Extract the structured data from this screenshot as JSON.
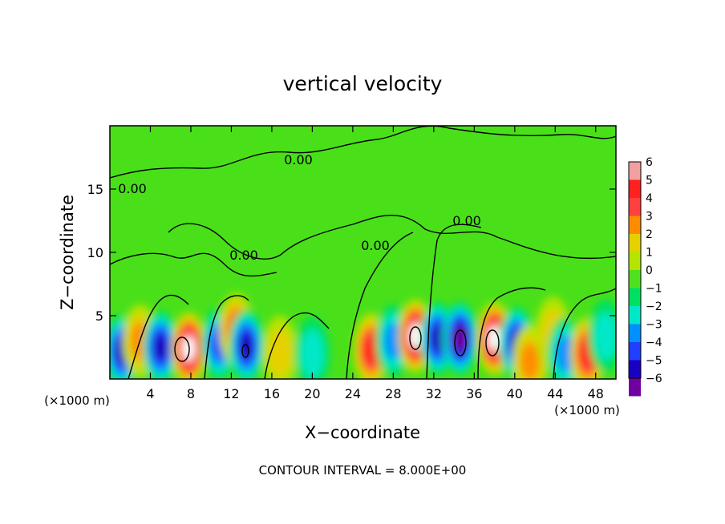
{
  "chart_data": {
    "type": "heatmap",
    "title": "vertical velocity",
    "xlabel": "X−coordinate",
    "ylabel": "Z−coordinate",
    "x_unit_left": "(×1000 m)",
    "x_unit_right": "(×1000 m)",
    "xlim": [
      0,
      50
    ],
    "ylim": [
      0,
      20
    ],
    "x_ticks": [
      4,
      8,
      12,
      16,
      20,
      24,
      28,
      32,
      36,
      40,
      44,
      48
    ],
    "y_ticks": [
      5,
      10,
      15
    ],
    "x_tick_labels": [
      "4",
      "8",
      "12",
      "16",
      "20",
      "24",
      "28",
      "32",
      "36",
      "40",
      "44",
      "48"
    ],
    "y_tick_labels": [
      "5",
      "10",
      "15"
    ],
    "colorbar": {
      "levels": [
        6,
        5,
        4,
        3,
        2,
        1,
        0,
        -1,
        -2,
        -3,
        -4,
        -5,
        -6
      ],
      "labels": [
        "6",
        "5",
        "4",
        "3",
        "2",
        "1",
        "0",
        "−1",
        "−2",
        "−3",
        "−4",
        "−5",
        "−6"
      ],
      "colors": [
        "#f0a0a0",
        "#ff2020",
        "#ff4040",
        "#ff8c00",
        "#e6d000",
        "#b4e400",
        "#50e020",
        "#00e060",
        "#00e8c8",
        "#0090ff",
        "#2040ff",
        "#1a00c0",
        "#7000a0"
      ],
      "contour_labels": [
        "0.00",
        "0.00",
        "0.00",
        "0.00",
        "0.00"
      ]
    },
    "cells": [
      {
        "x": 1.2,
        "z": 2.2,
        "w": -4.5
      },
      {
        "x": 3.0,
        "z": 3.0,
        "w": 3.0
      },
      {
        "x": 5.0,
        "z": 2.5,
        "w": -5.0
      },
      {
        "x": 7.8,
        "z": 2.4,
        "w": 6.5
      },
      {
        "x": 10.8,
        "z": 2.8,
        "w": -3.8
      },
      {
        "x": 12.5,
        "z": 3.9,
        "w": 4.0
      },
      {
        "x": 13.5,
        "z": 2.6,
        "w": -4.8
      },
      {
        "x": 16.8,
        "z": 2.1,
        "w": 2.4
      },
      {
        "x": 20.0,
        "z": 2.0,
        "w": -2.3
      },
      {
        "x": 25.8,
        "z": 2.3,
        "w": 4.8
      },
      {
        "x": 28.0,
        "z": 3.0,
        "w": -3.0
      },
      {
        "x": 30.2,
        "z": 3.4,
        "w": 6.5
      },
      {
        "x": 32.4,
        "z": 3.2,
        "w": -4.6
      },
      {
        "x": 34.6,
        "z": 3.2,
        "w": -6.0
      },
      {
        "x": 38.0,
        "z": 3.2,
        "w": 6.5
      },
      {
        "x": 40.2,
        "z": 2.8,
        "w": -5.0
      },
      {
        "x": 41.5,
        "z": 1.4,
        "w": 3.0
      },
      {
        "x": 43.8,
        "z": 3.6,
        "w": 2.0
      },
      {
        "x": 45.0,
        "z": 2.0,
        "w": -2.6
      },
      {
        "x": 47.2,
        "z": 2.0,
        "w": 4.6
      },
      {
        "x": 49.0,
        "z": 3.4,
        "w": -2.0
      }
    ],
    "grid": false
  },
  "footer": {
    "contour_interval": "CONTOUR INTERVAL = 8.000E+00"
  }
}
